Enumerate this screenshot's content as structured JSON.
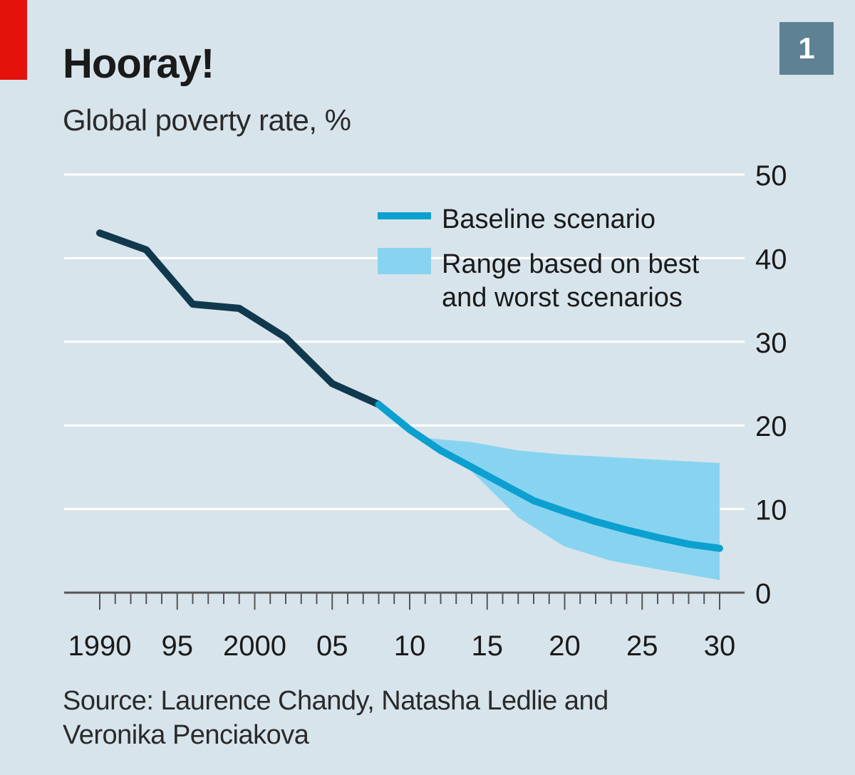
{
  "header": {
    "title": "Hooray!",
    "subtitle": "Global poverty rate, %",
    "chart_number": "1"
  },
  "source": {
    "line1": "Source: Laurence Chandy, Natasha Ledlie and",
    "line2": "Veronika Penciakova"
  },
  "colors": {
    "background": "#d8e4ec",
    "historical_line": "#10394e",
    "baseline_line": "#0ca0d0",
    "range_fill": "#88d4f0",
    "gridline": "#ffffff",
    "brand_red": "#e3120b"
  },
  "chart_data": {
    "type": "line",
    "title": "Hooray!",
    "subtitle": "Global poverty rate, %",
    "xlabel": "",
    "ylabel": "",
    "xlim": [
      1989,
      2031
    ],
    "ylim": [
      0,
      50
    ],
    "grid": true,
    "legend_position": "top-right",
    "y_axis_side": "right",
    "y_ticks": [
      0,
      10,
      20,
      30,
      40,
      50
    ],
    "x_tick_values": [
      1990,
      1995,
      2000,
      2005,
      2010,
      2015,
      2020,
      2025,
      2030
    ],
    "x_tick_labels": [
      "1990",
      "95",
      "2000",
      "05",
      "10",
      "15",
      "20",
      "25",
      "30"
    ],
    "series": [
      {
        "name": "",
        "style": "historical",
        "x": [
          1990,
          1993,
          1996,
          1999,
          2002,
          2005,
          2008
        ],
        "y": [
          43,
          41,
          34.5,
          34,
          30.5,
          25,
          22.5
        ]
      },
      {
        "name": "Baseline scenario",
        "style": "baseline",
        "x": [
          2008,
          2010,
          2012,
          2014,
          2016,
          2018,
          2020,
          2022,
          2024,
          2026,
          2028,
          2030
        ],
        "y": [
          22.5,
          19.5,
          17,
          15,
          13,
          11,
          9.7,
          8.5,
          7.5,
          6.6,
          5.8,
          5.3
        ]
      }
    ],
    "range": {
      "name": "Range based on best and worst scenarios",
      "x": [
        2011,
        2014,
        2017,
        2020,
        2023,
        2026,
        2030
      ],
      "upper": [
        18.5,
        18,
        17,
        16.5,
        16.2,
        15.9,
        15.5
      ],
      "lower": [
        18.5,
        14.5,
        9,
        5.5,
        3.8,
        2.8,
        1.5
      ]
    },
    "legend": [
      {
        "label": "Baseline scenario",
        "kind": "line"
      },
      {
        "label": "Range based on best and worst scenarios",
        "kind": "area",
        "lines": [
          "Range based on best",
          "and worst scenarios"
        ]
      }
    ]
  }
}
